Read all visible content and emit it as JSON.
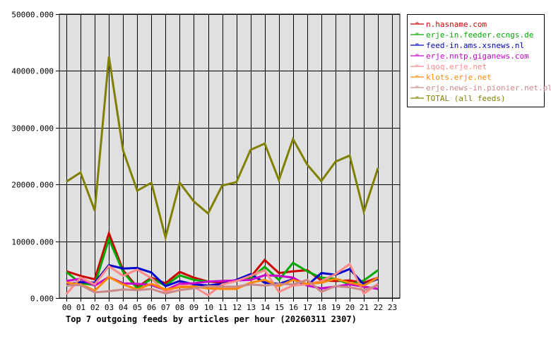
{
  "chart_data": {
    "type": "line",
    "title": "Top 7 outgoing feeds by articles per hour (20260311 2307)",
    "xlabel": "",
    "ylabel": "",
    "ylim": [
      0,
      50000
    ],
    "y_ticks": [
      "0.000",
      "10000.000",
      "20000.000",
      "30000.000",
      "40000.000",
      "50000.000"
    ],
    "y_tick_values": [
      0,
      10000,
      20000,
      30000,
      40000,
      50000
    ],
    "categories": [
      "00",
      "01",
      "02",
      "03",
      "04",
      "05",
      "06",
      "07",
      "08",
      "09",
      "10",
      "11",
      "12",
      "13",
      "14",
      "15",
      "16",
      "17",
      "18",
      "19",
      "20",
      "21",
      "22",
      "23"
    ],
    "grid": true,
    "legend_position": "right",
    "plot_background": "#e0e0e0",
    "series": [
      {
        "name": "n.hasname.com",
        "color": "#cc0000",
        "values": [
          4700,
          3900,
          3300,
          11400,
          4900,
          1900,
          3600,
          2600,
          4600,
          3600,
          2900,
          2700,
          3100,
          3700,
          6700,
          4400,
          4700,
          4900,
          3100,
          3000,
          3100,
          2700,
          3600
        ]
      },
      {
        "name": "erje-in.feeder.ecngs.de",
        "color": "#00aa00",
        "values": [
          4600,
          2600,
          2300,
          10400,
          4600,
          1700,
          3400,
          2200,
          4000,
          3200,
          2900,
          3000,
          3100,
          3400,
          5500,
          3200,
          6200,
          4700,
          3600,
          3400,
          2400,
          3100,
          4900
        ]
      },
      {
        "name": "feed-in.ams.xsnews.nl",
        "color": "#0000cc",
        "values": [
          2400,
          2800,
          2700,
          5800,
          5200,
          5300,
          4500,
          2100,
          3000,
          2400,
          2200,
          2500,
          3200,
          4200,
          2700,
          2500,
          3300,
          2200,
          4400,
          4100,
          5100,
          2400,
          3400
        ]
      },
      {
        "name": "erje.nntp.giganews.com",
        "color": "#cc00cc",
        "values": [
          3000,
          3400,
          2200,
          3700,
          2600,
          2500,
          2300,
          1400,
          2500,
          2600,
          2900,
          3000,
          3100,
          3200,
          4000,
          3900,
          3600,
          2200,
          1700,
          2000,
          2400,
          2000,
          1600
        ]
      },
      {
        "name": "iqoq.erje.net",
        "color": "#ff8888",
        "values": [
          700,
          3600,
          2400,
          5600,
          3900,
          5000,
          3500,
          1000,
          2200,
          2000,
          500,
          2400,
          3000,
          3900,
          4900,
          1100,
          2200,
          2400,
          3000,
          4200,
          6000,
          800,
          2500
        ]
      },
      {
        "name": "klots.erje.net",
        "color": "#ff8800",
        "values": [
          2700,
          2400,
          1300,
          3700,
          2400,
          1500,
          2500,
          1500,
          1900,
          2000,
          1700,
          1600,
          1600,
          2700,
          3200,
          2100,
          3200,
          2500,
          2700,
          3400,
          2700,
          2200,
          3600
        ]
      },
      {
        "name": "erje.news-in.pionier.net.pl",
        "color": "#cc8888",
        "values": [
          2200,
          2300,
          1000,
          1200,
          1500,
          1400,
          1600,
          800,
          1400,
          1700,
          2100,
          2000,
          2000,
          2400,
          2200,
          2500,
          2400,
          3200,
          1100,
          2100,
          1900,
          1400,
          2200
        ]
      },
      {
        "name": "TOTAL (all feeds)",
        "color": "#808000",
        "values": [
          20500,
          22100,
          15400,
          42500,
          26000,
          18900,
          20300,
          10700,
          20300,
          17000,
          14900,
          19800,
          20400,
          26100,
          27200,
          20800,
          28000,
          23500,
          20600,
          24000,
          25100,
          15200,
          22900
        ]
      }
    ]
  }
}
